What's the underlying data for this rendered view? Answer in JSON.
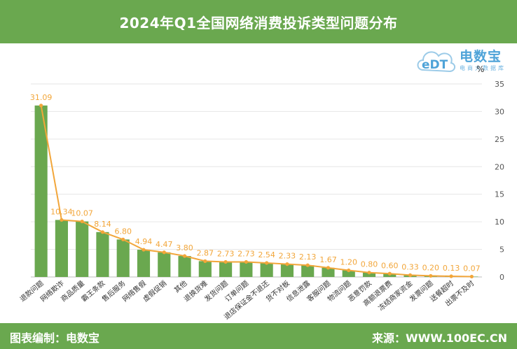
{
  "header": {
    "title": "2024年Q1全国网络消费投诉类型问题分布"
  },
  "footer": {
    "left": "图表编制：电数宝",
    "right": "来源：WWW.100EC.CN"
  },
  "logo": {
    "brand": "电数宝",
    "brand_sub": "电商大数据库",
    "mark_text": "eDT"
  },
  "colors": {
    "header_bg": "#6aa84f",
    "bar": "#6aa84f",
    "line": "#f2a63a",
    "logo": "#4ea3d8"
  },
  "chart_data": {
    "type": "bar",
    "unit": "%",
    "y_axis_position": "right",
    "ylim": [
      0,
      35
    ],
    "yticks": [
      0,
      5,
      10,
      15,
      20,
      25,
      30,
      35
    ],
    "grid": true,
    "categories": [
      "退款问题",
      "网络欺诈",
      "商品质量",
      "霸王条款",
      "售后服务",
      "网络售假",
      "虚假促销",
      "其他",
      "退换货难",
      "发货问题",
      "订单问题",
      "退店保证金不退还",
      "货不对板",
      "信息泄露",
      "客服问题",
      "物流问题",
      "恶意罚款",
      "高额退票费",
      "冻结商家资金",
      "发票问题",
      "送餐超时",
      "出票不及时"
    ],
    "values": [
      31.09,
      10.34,
      10.07,
      8.14,
      6.8,
      4.94,
      4.47,
      3.8,
      2.87,
      2.73,
      2.73,
      2.54,
      2.33,
      2.13,
      1.67,
      1.2,
      0.8,
      0.6,
      0.33,
      0.2,
      0.13,
      0.07
    ],
    "value_labels": [
      "31.09",
      "10.34",
      "10.07",
      "8.14",
      "6.80",
      "4.94",
      "4.47",
      "3.80",
      "2.87",
      "2.73",
      "2.73",
      "2.54",
      "2.33",
      "2.13",
      "1.67",
      "1.20",
      "0.80",
      "0.60",
      "0.33",
      "0.20",
      "0.13",
      "0.07"
    ],
    "overlay": "line"
  }
}
